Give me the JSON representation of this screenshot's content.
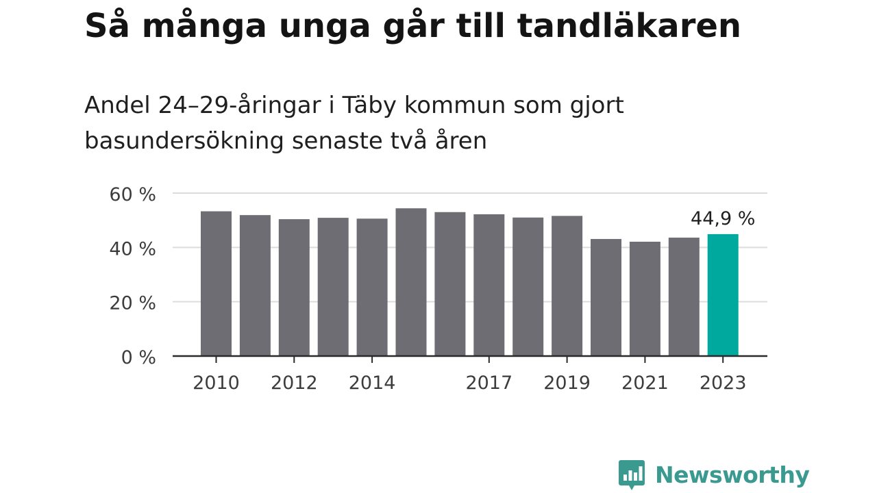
{
  "title": "Så många unga går till tandläkaren",
  "subtitle": "Andel 24–29-åringar i Täby kommun som gjort basundersökning senaste två åren",
  "brand": {
    "name": "Newsworthy",
    "color": "#3a9a90",
    "icon": "bar-chart-speech-bubble-icon"
  },
  "chart_data": {
    "type": "bar",
    "categories": [
      "2010",
      "2011",
      "2012",
      "2013",
      "2014",
      "2015",
      "2016",
      "2017",
      "2018",
      "2019",
      "2020",
      "2021",
      "2022",
      "2023"
    ],
    "values": [
      53.3,
      51.9,
      50.4,
      50.9,
      50.6,
      54.4,
      53.0,
      52.2,
      51.0,
      51.6,
      43.1,
      42.1,
      43.6,
      44.9
    ],
    "x_tick_labels": [
      "2010",
      "2012",
      "2014",
      "2017",
      "2019",
      "2021",
      "2023"
    ],
    "y_ticks": [
      0,
      20,
      40,
      60
    ],
    "y_tick_labels": [
      "0 %",
      "20 %",
      "40 %",
      "60 %"
    ],
    "ylim": [
      0,
      60
    ],
    "xlabel": "",
    "ylabel": "",
    "grid": true,
    "bar_color": "#6e6d73",
    "highlight_color": "#00a99d",
    "highlight_index": 13,
    "annotation": "44,9 %"
  }
}
